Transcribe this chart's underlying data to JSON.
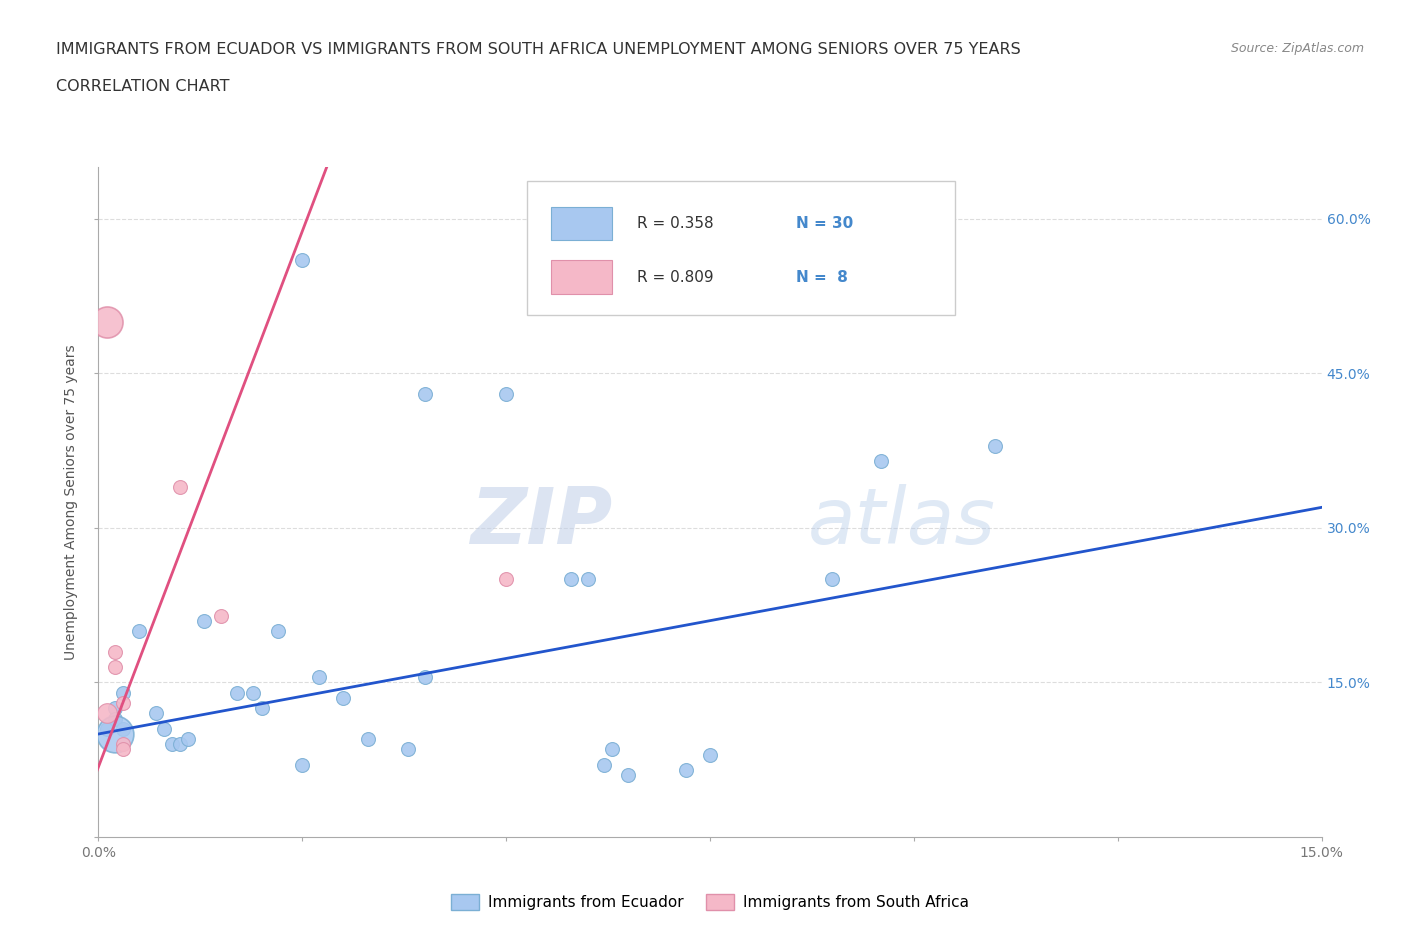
{
  "title_line1": "IMMIGRANTS FROM ECUADOR VS IMMIGRANTS FROM SOUTH AFRICA UNEMPLOYMENT AMONG SENIORS OVER 75 YEARS",
  "title_line2": "CORRELATION CHART",
  "source": "Source: ZipAtlas.com",
  "ylabel": "Unemployment Among Seniors over 75 years",
  "xlim": [
    0.0,
    0.15
  ],
  "ylim": [
    0.0,
    0.65
  ],
  "yticks": [
    0.0,
    0.15,
    0.3,
    0.45,
    0.6
  ],
  "ytick_labels_left": [
    "",
    "15.0%",
    "30.0%",
    "45.0%",
    "60.0%"
  ],
  "ytick_labels_right": [
    "",
    "15.0%",
    "30.0%",
    "45.0%",
    "60.0%"
  ],
  "xticks": [
    0.0,
    0.025,
    0.05,
    0.075,
    0.1,
    0.125,
    0.15
  ],
  "xtick_labels": [
    "0.0%",
    "",
    "",
    "",
    "",
    "",
    "15.0%"
  ],
  "ecuador_color": "#a8c8f0",
  "ecuador_edge": "#7bafd4",
  "southafrica_color": "#f5b8c8",
  "southafrica_edge": "#e090aa",
  "trendline_ecuador_color": "#2255cc",
  "trendline_southafrica_color": "#e05080",
  "trendline_dashed_color": "#c8c8c8",
  "legend_r_ecuador": "R = 0.358",
  "legend_n_ecuador": "N = 30",
  "legend_r_southafrica": "R = 0.809",
  "legend_n_southafrica": "N =  8",
  "watermark_zip": "ZIP",
  "watermark_atlas": "atlas",
  "ecuador_points": [
    [
      0.001,
      0.105
    ],
    [
      0.002,
      0.125
    ],
    [
      0.002,
      0.115
    ],
    [
      0.003,
      0.105
    ],
    [
      0.003,
      0.14
    ],
    [
      0.005,
      0.2
    ],
    [
      0.007,
      0.12
    ],
    [
      0.008,
      0.105
    ],
    [
      0.009,
      0.09
    ],
    [
      0.01,
      0.09
    ],
    [
      0.011,
      0.095
    ],
    [
      0.013,
      0.21
    ],
    [
      0.017,
      0.14
    ],
    [
      0.019,
      0.14
    ],
    [
      0.02,
      0.125
    ],
    [
      0.022,
      0.2
    ],
    [
      0.025,
      0.07
    ],
    [
      0.027,
      0.155
    ],
    [
      0.03,
      0.135
    ],
    [
      0.033,
      0.095
    ],
    [
      0.038,
      0.085
    ],
    [
      0.04,
      0.155
    ],
    [
      0.04,
      0.43
    ],
    [
      0.05,
      0.43
    ],
    [
      0.058,
      0.25
    ],
    [
      0.062,
      0.07
    ],
    [
      0.063,
      0.085
    ],
    [
      0.065,
      0.06
    ],
    [
      0.072,
      0.065
    ],
    [
      0.075,
      0.08
    ],
    [
      0.09,
      0.25
    ],
    [
      0.096,
      0.365
    ],
    [
      0.11,
      0.38
    ],
    [
      0.06,
      0.25
    ],
    [
      0.025,
      0.56
    ]
  ],
  "ecuador_large": [
    [
      0.002,
      0.1
    ]
  ],
  "southafrica_points": [
    [
      0.002,
      0.18
    ],
    [
      0.002,
      0.165
    ],
    [
      0.003,
      0.13
    ],
    [
      0.003,
      0.09
    ],
    [
      0.003,
      0.085
    ],
    [
      0.01,
      0.34
    ],
    [
      0.015,
      0.215
    ],
    [
      0.05,
      0.25
    ]
  ],
  "southafrica_large": [
    [
      0.001,
      0.12
    ]
  ],
  "southafrica_xlarge": [
    [
      0.001,
      0.5
    ]
  ],
  "grid_color": "#dddddd",
  "background_color": "#ffffff",
  "title_color": "#333333",
  "axis_label_color": "#777777",
  "right_tick_color": "#4488cc"
}
